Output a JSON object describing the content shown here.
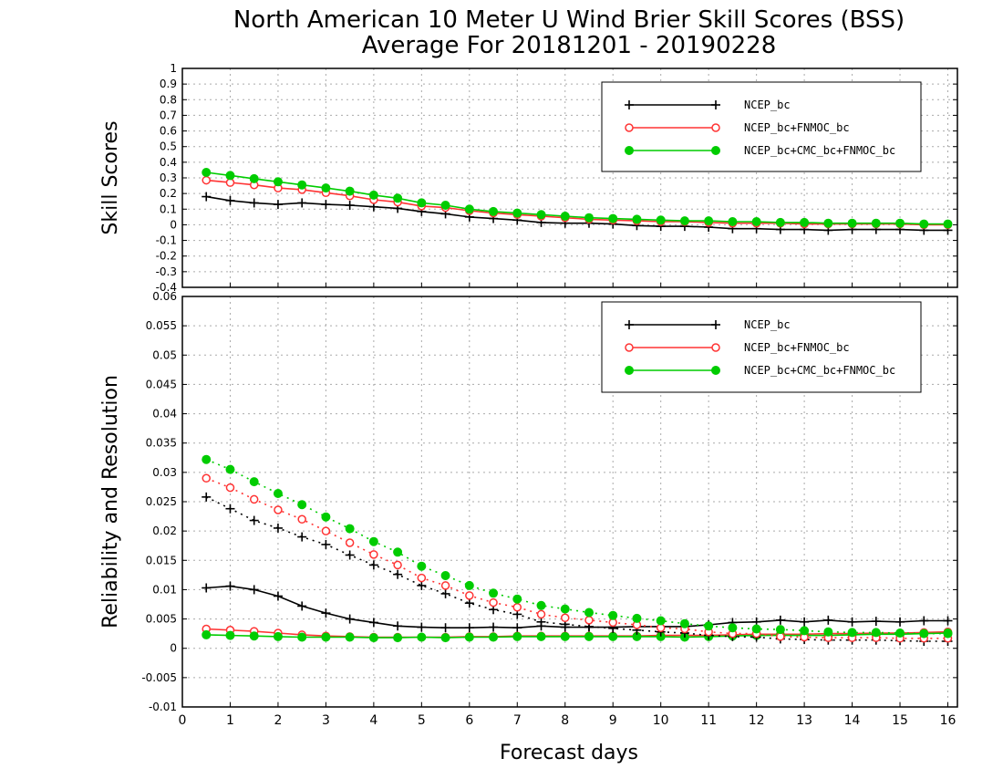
{
  "page": {
    "title_line1": "North American 10 Meter U Wind Brier Skill Scores (BSS)",
    "title_line2": "Average For 20181201 - 20190228",
    "xlabel": "Forecast days"
  },
  "colors": {
    "NCEP_bc": "#000000",
    "NCEP_bc+FNMOC_bc": "#ff3333",
    "NCEP_bc+CMC_bc+FNMOC_bc": "#00cc00",
    "grid": "#aaaaaa"
  },
  "chart_data": [
    {
      "type": "line",
      "ylabel": "Skill Scores",
      "ylim": [
        -0.4,
        1.0
      ],
      "yticks": [
        "1",
        "0.9",
        "0.8",
        "0.7",
        "0.6",
        "0.5",
        "0.4",
        "0.3",
        "0.2",
        "0.1",
        "0",
        "-0.1",
        "-0.2",
        "-0.3",
        "-0.4"
      ],
      "xlim": [
        0,
        16.2
      ],
      "xticks": [
        "0",
        "1",
        "2",
        "3",
        "4",
        "5",
        "6",
        "7",
        "8",
        "9",
        "10",
        "11",
        "12",
        "13",
        "14",
        "15",
        "16"
      ],
      "grid": true,
      "legend_position": "top-right",
      "x": [
        0.5,
        1,
        1.5,
        2,
        2.5,
        3,
        3.5,
        4,
        4.5,
        5,
        5.5,
        6,
        6.5,
        7,
        7.5,
        8,
        8.5,
        9,
        9.5,
        10,
        10.5,
        11,
        11.5,
        12,
        12.5,
        13,
        13.5,
        14,
        14.5,
        15,
        15.5,
        16
      ],
      "series": [
        {
          "name": "NCEP_bc",
          "values": [
            0.18,
            0.155,
            0.14,
            0.13,
            0.14,
            0.13,
            0.125,
            0.115,
            0.105,
            0.085,
            0.07,
            0.05,
            0.04,
            0.03,
            0.015,
            0.01,
            0.01,
            0.005,
            -0.005,
            -0.01,
            -0.01,
            -0.015,
            -0.025,
            -0.025,
            -0.03,
            -0.03,
            -0.035,
            -0.03,
            -0.03,
            -0.03,
            -0.035,
            -0.035
          ],
          "style": "solid",
          "marker": "plus"
        },
        {
          "name": "NCEP_bc+FNMOC_bc",
          "values": [
            0.285,
            0.27,
            0.255,
            0.235,
            0.225,
            0.205,
            0.185,
            0.16,
            0.145,
            0.12,
            0.11,
            0.09,
            0.075,
            0.065,
            0.055,
            0.045,
            0.035,
            0.03,
            0.025,
            0.02,
            0.02,
            0.015,
            0.01,
            0.01,
            0.01,
            0.005,
            0.005,
            0.005,
            0.005,
            0.005,
            0.0,
            0.0
          ],
          "style": "solid",
          "marker": "open-circle"
        },
        {
          "name": "NCEP_bc+CMC_bc+FNMOC_bc",
          "values": [
            0.335,
            0.315,
            0.295,
            0.275,
            0.255,
            0.235,
            0.215,
            0.19,
            0.17,
            0.14,
            0.125,
            0.1,
            0.085,
            0.075,
            0.065,
            0.055,
            0.045,
            0.04,
            0.035,
            0.03,
            0.025,
            0.025,
            0.02,
            0.02,
            0.015,
            0.015,
            0.01,
            0.01,
            0.01,
            0.01,
            0.005,
            0.005
          ],
          "style": "solid",
          "marker": "filled-circle"
        }
      ]
    },
    {
      "type": "line",
      "ylabel": "Reliability and Resolution",
      "ylim": [
        -0.01,
        0.06
      ],
      "yticks": [
        "0.06",
        "0.055",
        "0.05",
        "0.045",
        "0.04",
        "0.035",
        "0.03",
        "0.025",
        "0.02",
        "0.015",
        "0.01",
        "0.005",
        "0",
        "-0.005",
        "-0.01"
      ],
      "xlim": [
        0,
        16.2
      ],
      "xticks": [
        "0",
        "1",
        "2",
        "3",
        "4",
        "5",
        "6",
        "7",
        "8",
        "9",
        "10",
        "11",
        "12",
        "13",
        "14",
        "15",
        "16"
      ],
      "grid": true,
      "legend_position": "top-right",
      "x": [
        0.5,
        1,
        1.5,
        2,
        2.5,
        3,
        3.5,
        4,
        4.5,
        5,
        5.5,
        6,
        6.5,
        7,
        7.5,
        8,
        8.5,
        9,
        9.5,
        10,
        10.5,
        11,
        11.5,
        12,
        12.5,
        13,
        13.5,
        14,
        14.5,
        15,
        15.5,
        16
      ],
      "series": [
        {
          "name": "NCEP_bc",
          "group": "reliability",
          "style": "solid",
          "marker": "plus",
          "values": [
            0.0103,
            0.0106,
            0.01,
            0.0089,
            0.0072,
            0.006,
            0.005,
            0.0044,
            0.0038,
            0.0036,
            0.0035,
            0.0035,
            0.0036,
            0.0035,
            0.0038,
            0.0036,
            0.0036,
            0.0036,
            0.0037,
            0.0037,
            0.0037,
            0.004,
            0.0044,
            0.0045,
            0.0048,
            0.0045,
            0.0048,
            0.0045,
            0.0046,
            0.0045,
            0.0047,
            0.0047
          ]
        },
        {
          "name": "NCEP_bc+FNMOC_bc",
          "group": "reliability",
          "style": "solid",
          "marker": "open-circle",
          "values": [
            0.0033,
            0.0031,
            0.0029,
            0.0026,
            0.0023,
            0.0021,
            0.002,
            0.0019,
            0.0019,
            0.0019,
            0.0019,
            0.002,
            0.002,
            0.0021,
            0.0021,
            0.0021,
            0.0021,
            0.0021,
            0.0021,
            0.0022,
            0.0022,
            0.0022,
            0.0023,
            0.0024,
            0.0024,
            0.0024,
            0.0025,
            0.0025,
            0.0026,
            0.0026,
            0.0027,
            0.0028
          ]
        },
        {
          "name": "NCEP_bc+CMC_bc+FNMOC_bc",
          "group": "reliability",
          "style": "solid",
          "marker": "filled-circle",
          "values": [
            0.0023,
            0.0022,
            0.0021,
            0.002,
            0.0019,
            0.0019,
            0.0019,
            0.0018,
            0.0018,
            0.0019,
            0.0018,
            0.0019,
            0.0019,
            0.002,
            0.002,
            0.002,
            0.002,
            0.002,
            0.002,
            0.002,
            0.0019,
            0.002,
            0.0021,
            0.0022,
            0.0022,
            0.0022,
            0.0022,
            0.0023,
            0.0024,
            0.0024,
            0.0025,
            0.0026
          ]
        },
        {
          "name": "NCEP_bc",
          "group": "resolution",
          "style": "dotted",
          "marker": "plus",
          "values": [
            0.0258,
            0.0238,
            0.0218,
            0.0205,
            0.019,
            0.0177,
            0.0159,
            0.0142,
            0.0126,
            0.0107,
            0.0093,
            0.0077,
            0.0066,
            0.0058,
            0.0045,
            0.0041,
            0.0037,
            0.0034,
            0.0031,
            0.0028,
            0.0026,
            0.0022,
            0.002,
            0.0019,
            0.0016,
            0.0015,
            0.0014,
            0.0014,
            0.0014,
            0.0013,
            0.0012,
            0.0012
          ]
        },
        {
          "name": "NCEP_bc+FNMOC_bc",
          "group": "resolution",
          "style": "dotted",
          "marker": "open-circle",
          "values": [
            0.029,
            0.0274,
            0.0254,
            0.0236,
            0.022,
            0.02,
            0.018,
            0.016,
            0.0142,
            0.012,
            0.0107,
            0.009,
            0.0078,
            0.007,
            0.0058,
            0.0052,
            0.0048,
            0.0044,
            0.004,
            0.0035,
            0.0033,
            0.0028,
            0.0025,
            0.0025,
            0.002,
            0.0019,
            0.0018,
            0.0018,
            0.0018,
            0.0017,
            0.0017,
            0.0017
          ]
        },
        {
          "name": "NCEP_bc+CMC_bc+FNMOC_bc",
          "group": "resolution",
          "style": "dotted",
          "marker": "filled-circle",
          "values": [
            0.0322,
            0.0305,
            0.0284,
            0.0264,
            0.0245,
            0.0224,
            0.0204,
            0.0182,
            0.0164,
            0.014,
            0.0124,
            0.0107,
            0.0094,
            0.0084,
            0.0073,
            0.0067,
            0.0061,
            0.0056,
            0.0051,
            0.0047,
            0.0042,
            0.0038,
            0.0035,
            0.0033,
            0.0032,
            0.003,
            0.0028,
            0.0027,
            0.0027,
            0.0026,
            0.0025,
            0.0025
          ]
        }
      ],
      "legend": [
        "NCEP_bc",
        "NCEP_bc+FNMOC_bc",
        "NCEP_bc+CMC_bc+FNMOC_bc"
      ]
    }
  ]
}
